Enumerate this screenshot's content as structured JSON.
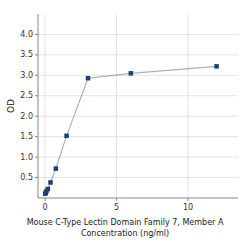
{
  "chart_data": {
    "type": "line",
    "x": [
      0.0,
      0.04688,
      0.09375,
      0.1875,
      0.375,
      0.75,
      1.5,
      3.0,
      6.0,
      12.0
    ],
    "values": [
      0.105,
      0.13,
      0.17,
      0.22,
      0.38,
      0.72,
      1.52,
      2.93,
      3.05,
      3.22
    ],
    "color": "#1f3f6e",
    "marker": "square",
    "xlabel": "Mouse C-Type Lectin Domain Family 7, Member A\nConcentration (ng/ml)",
    "ylabel": "OD",
    "xlim": [
      -0.5,
      13.5
    ],
    "ylim": [
      0,
      4.5
    ],
    "xticks": [
      0,
      5,
      10
    ],
    "yticks": [
      0.5,
      {
        "value": 1.0,
        "label": "1.0"
      },
      1.5,
      {
        "value": 2.0,
        "label": "2.0"
      },
      2.5,
      {
        "value": 3.0,
        "label": "3.0"
      },
      3.5,
      {
        "value": 4.0,
        "label": "4.0"
      }
    ],
    "grid": true
  }
}
